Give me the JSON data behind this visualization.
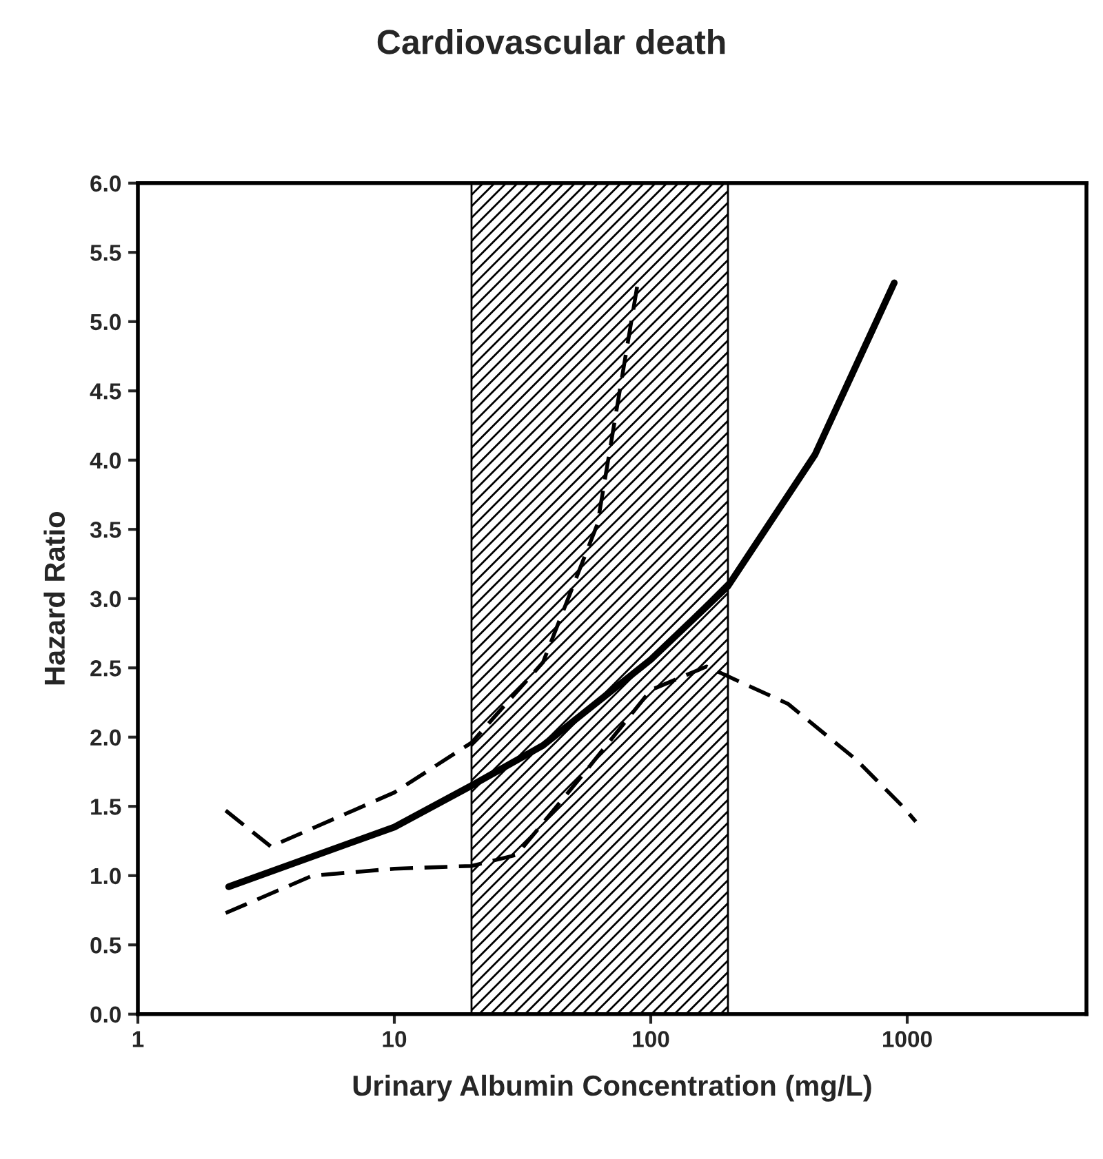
{
  "chart_data": {
    "type": "line",
    "title": "Cardiovascular death",
    "xlabel": "Urinary Albumin Concentration (mg/L)",
    "ylabel": "Hazard Ratio",
    "log": "x",
    "xlim": [
      1,
      5000
    ],
    "xticks": [
      1,
      10,
      100,
      1000
    ],
    "ylim": [
      0,
      6
    ],
    "yticks": [
      {
        "value": 0,
        "label": "0.0"
      },
      {
        "value": 0.5,
        "label": "0.5"
      },
      {
        "value": 1,
        "label": "1.0"
      },
      {
        "value": 1.5,
        "label": "1.5"
      },
      {
        "value": 2,
        "label": "2.0"
      },
      {
        "value": 2.5,
        "label": "2.5"
      },
      {
        "value": 3,
        "label": "3.0"
      },
      {
        "value": 3.5,
        "label": "3.5"
      },
      {
        "value": 4,
        "label": "4.0"
      },
      {
        "value": 4.5,
        "label": "4.5"
      },
      {
        "value": 5,
        "label": "5.0"
      },
      {
        "value": 5.5,
        "label": "5.5"
      },
      {
        "value": 6,
        "label": "6.0"
      }
    ],
    "grid": false,
    "bands": [
      {
        "axis": "x",
        "from": 20,
        "to": 200
      }
    ],
    "series": [
      {
        "color": "#000000",
        "line_style": "solid",
        "x": [
          2.26,
          10,
          20,
          38,
          100,
          200,
          437,
          890
        ],
        "values": [
          0.92,
          1.35,
          1.65,
          1.94,
          2.56,
          3.09,
          4.04,
          5.28
        ]
      },
      {
        "color": "#000000",
        "line_style": "dashed",
        "x": [
          2.2,
          3.3,
          10,
          20,
          38,
          62,
          89
        ],
        "values": [
          1.47,
          1.21,
          1.6,
          1.96,
          2.54,
          3.54,
          5.28
        ]
      },
      {
        "color": "#000000",
        "line_style": "dashed",
        "x": [
          2.2,
          4.8,
          10,
          20,
          30,
          55,
          100,
          165,
          343,
          630,
          960,
          1080
        ],
        "values": [
          0.73,
          1.0,
          1.05,
          1.07,
          1.15,
          1.74,
          2.34,
          2.51,
          2.24,
          1.84,
          1.5,
          1.39
        ]
      }
    ]
  }
}
